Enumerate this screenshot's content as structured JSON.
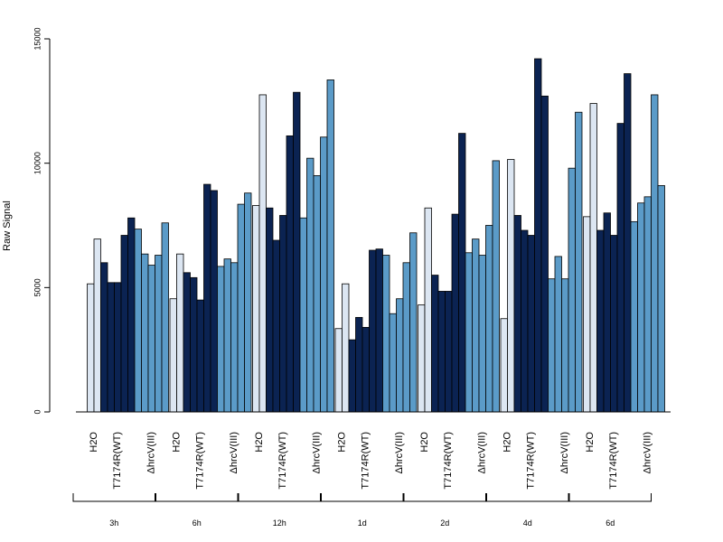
{
  "chart_data": {
    "type": "bar",
    "ylabel": "Raw Signal",
    "ylim": [
      0,
      15000
    ],
    "yticks": [
      0,
      5000,
      10000,
      15000
    ],
    "grid": false,
    "legend": "none",
    "category_labels": [
      "H2O",
      "T7174R(WT)",
      "ΔhrcV(III)"
    ],
    "colors": {
      "H2O": "#dce6f2",
      "T7174R(WT)": "#0b2352",
      "ΔhrcV(III)": "#5b9bc8"
    },
    "groups": [
      {
        "label": "3h",
        "H2O": [
          5150,
          6950
        ],
        "T7174R(WT)": [
          6000,
          5200,
          5200,
          7100,
          7800
        ],
        "ΔhrcV(III)": [
          7350,
          6350,
          5900,
          6300,
          7600
        ]
      },
      {
        "label": "6h",
        "H2O": [
          4550,
          6350
        ],
        "T7174R(WT)": [
          5600,
          5400,
          4500,
          9150,
          8900
        ],
        "ΔhrcV(III)": [
          5850,
          6150,
          6000,
          8350,
          8800
        ]
      },
      {
        "label": "12h",
        "H2O": [
          8300,
          12750
        ],
        "T7174R(WT)": [
          8200,
          6900,
          7900,
          11100,
          12850
        ],
        "ΔhrcV(III)": [
          7800,
          10200,
          9500,
          11050,
          13350
        ]
      },
      {
        "label": "1d",
        "H2O": [
          3350,
          5150
        ],
        "T7174R(WT)": [
          2900,
          3800,
          3400,
          6500,
          6550
        ],
        "ΔhrcV(III)": [
          6300,
          3950,
          4550,
          6000,
          7200
        ]
      },
      {
        "label": "2d",
        "H2O": [
          4300,
          8200
        ],
        "T7174R(WT)": [
          5500,
          4850,
          4850,
          7950,
          11200
        ],
        "ΔhrcV(III)": [
          6400,
          6950,
          6300,
          7500,
          10100
        ]
      },
      {
        "label": "4d",
        "H2O": [
          3750,
          10150
        ],
        "T7174R(WT)": [
          7900,
          7300,
          7100,
          14200,
          12700
        ],
        "ΔhrcV(III)": [
          5350,
          6250,
          5350,
          9800,
          12050
        ]
      },
      {
        "label": "6d",
        "H2O": [
          7850,
          12400
        ],
        "T7174R(WT)": [
          7300,
          8000,
          7100,
          11600,
          13600
        ],
        "ΔhrcV(III)": [
          7650,
          8400,
          8650,
          12750,
          9100
        ]
      }
    ]
  }
}
